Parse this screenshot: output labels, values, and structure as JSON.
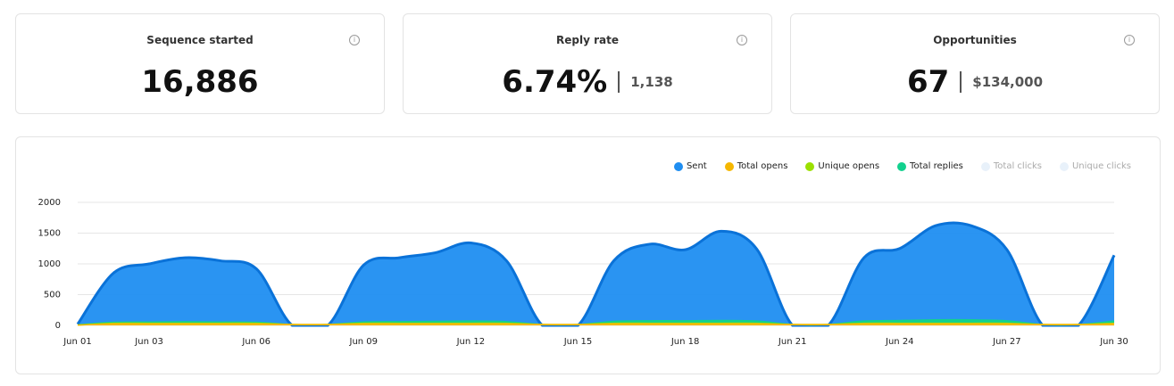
{
  "cards": [
    {
      "title": "Sequence started",
      "value": "16,886"
    },
    {
      "title": "Reply rate",
      "value": "6.74%",
      "secondary": "1,138"
    },
    {
      "title": "Opportunities",
      "value": "67",
      "secondary": "$134,000"
    }
  ],
  "chart_data": {
    "type": "area",
    "categories": [
      "Jun 01",
      null,
      "Jun 03",
      null,
      null,
      "Jun 06",
      null,
      null,
      "Jun 09",
      null,
      null,
      "Jun 12",
      null,
      null,
      "Jun 15",
      null,
      null,
      "Jun 18",
      null,
      null,
      "Jun 21",
      null,
      null,
      "Jun 24",
      null,
      null,
      "Jun 27",
      null,
      null,
      "Jun 30"
    ],
    "ylim": [
      0,
      2000
    ],
    "yticks": [
      0,
      500,
      1000,
      1500,
      2000
    ],
    "grid": true,
    "legend": "top-right",
    "series": [
      {
        "name": "Sent",
        "color": "#1f8ef1",
        "values": [
          20,
          850,
          1000,
          1100,
          1050,
          920,
          0,
          0,
          980,
          1100,
          1180,
          1340,
          1050,
          0,
          0,
          1050,
          1320,
          1230,
          1530,
          1240,
          0,
          0,
          1100,
          1250,
          1620,
          1620,
          1230,
          0,
          0,
          1140
        ]
      },
      {
        "name": "Total opens",
        "color": "#f5b700",
        "values": [
          5,
          25,
          25,
          25,
          25,
          25,
          15,
          15,
          25,
          25,
          25,
          25,
          25,
          15,
          15,
          25,
          25,
          25,
          25,
          25,
          15,
          15,
          25,
          25,
          25,
          25,
          25,
          15,
          15,
          25
        ]
      },
      {
        "name": "Unique opens",
        "color": "#9be000",
        "values": [
          5,
          35,
          35,
          35,
          35,
          35,
          15,
          15,
          35,
          35,
          35,
          35,
          35,
          15,
          15,
          35,
          35,
          35,
          35,
          35,
          15,
          15,
          35,
          35,
          35,
          35,
          35,
          15,
          15,
          35
        ]
      },
      {
        "name": "Total replies",
        "color": "#12d18e",
        "values": [
          10,
          50,
          55,
          60,
          55,
          50,
          15,
          15,
          55,
          60,
          65,
          70,
          60,
          15,
          15,
          65,
          75,
          75,
          80,
          70,
          15,
          15,
          70,
          80,
          90,
          90,
          75,
          15,
          15,
          70
        ]
      },
      {
        "name": "Total clicks",
        "color": "#e8f1fa",
        "hidden": true
      },
      {
        "name": "Unique clicks",
        "color": "#e8f1fa",
        "hidden": true
      }
    ]
  }
}
